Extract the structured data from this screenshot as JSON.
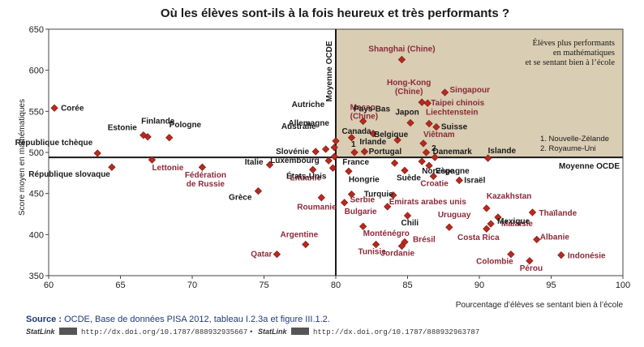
{
  "chart_data": {
    "type": "scatter",
    "title": "Où les élèves sont-ils à la fois heureux et très performants ?",
    "xlabel": "Pourcentage d’élèves se sentant bien à l’école",
    "ylabel": "Score moyen en mathématiques",
    "xlim": [
      60,
      100
    ],
    "ylim": [
      350,
      650
    ],
    "xticks": [
      60,
      65,
      70,
      75,
      80,
      85,
      90,
      95,
      100
    ],
    "yticks": [
      350,
      400,
      450,
      500,
      550,
      600,
      650
    ],
    "oecd_x": 80,
    "oecd_y": 494,
    "oecd_x_label": "Moyenne OCDE",
    "oecd_y_label": "Moyenne OCDE",
    "quadrant_note": [
      "Élèves plus performants",
      "en mathématiques",
      "et se sentant bien à l’école"
    ],
    "footnotes": [
      "1. Nouvelle-Zélande",
      "2. Royaume-Uni"
    ],
    "points": [
      {
        "name": "Corée",
        "x": 60.4,
        "y": 554,
        "oecd": true
      },
      {
        "name": "République tchèque",
        "x": 63.4,
        "y": 499,
        "oecd": true
      },
      {
        "name": "République slovaque",
        "x": 64.4,
        "y": 482,
        "oecd": true
      },
      {
        "name": "Estonie",
        "x": 66.6,
        "y": 521,
        "oecd": true
      },
      {
        "name": "Finlande",
        "x": 66.9,
        "y": 519,
        "oecd": true
      },
      {
        "name": "Pologne",
        "x": 68.4,
        "y": 518,
        "oecd": true
      },
      {
        "name": "Lettonie",
        "x": 67.2,
        "y": 491,
        "oecd": false
      },
      {
        "name": "Fédération de Russie",
        "x": 70.7,
        "y": 482,
        "oecd": false
      },
      {
        "name": "Grèce",
        "x": 74.6,
        "y": 453,
        "oecd": true
      },
      {
        "name": "Italie",
        "x": 75.4,
        "y": 485,
        "oecd": true
      },
      {
        "name": "Argentine",
        "x": 77.9,
        "y": 388,
        "oecd": false
      },
      {
        "name": "Qatar",
        "x": 75.9,
        "y": 376,
        "oecd": false
      },
      {
        "name": "Roumanie",
        "x": 79.0,
        "y": 445,
        "oecd": false
      },
      {
        "name": "Lituanie",
        "x": 78.4,
        "y": 479,
        "oecd": false
      },
      {
        "name": "Luxembourg",
        "x": 79.5,
        "y": 490,
        "oecd": true
      },
      {
        "name": "États-Unis",
        "x": 79.8,
        "y": 481,
        "oecd": true
      },
      {
        "name": "Slovénie",
        "x": 78.6,
        "y": 501,
        "oecd": true
      },
      {
        "name": "Australie",
        "x": 79.3,
        "y": 504,
        "oecd": true
      },
      {
        "name": "Autriche",
        "x": 79.9,
        "y": 506,
        "oecd": true
      },
      {
        "name": "Allemagne",
        "x": 80.0,
        "y": 514,
        "oecd": true
      },
      {
        "name": "France",
        "x": 79.9,
        "y": 495,
        "oecd": true
      },
      {
        "name": "Hongrie",
        "x": 80.9,
        "y": 477,
        "oecd": true
      },
      {
        "name": "Canada",
        "x": 81.1,
        "y": 518,
        "oecd": true
      },
      {
        "name": "1",
        "x": 81.3,
        "y": 500,
        "oecd": true
      },
      {
        "name": "Irlande",
        "x": 82.0,
        "y": 501,
        "oecd": true
      },
      {
        "name": "Macao (Chine)",
        "x": 81.9,
        "y": 538,
        "oecd": false
      },
      {
        "name": "Pays-Bas",
        "x": 82.6,
        "y": 523,
        "oecd": true
      },
      {
        "name": "Serbie",
        "x": 81.1,
        "y": 449,
        "oecd": false
      },
      {
        "name": "Bulgarie",
        "x": 80.6,
        "y": 439,
        "oecd": false
      },
      {
        "name": "Monténégro",
        "x": 81.9,
        "y": 410,
        "oecd": false
      },
      {
        "name": "Tunisie",
        "x": 82.8,
        "y": 388,
        "oecd": false
      },
      {
        "name": "Turquie",
        "x": 84.0,
        "y": 448,
        "oecd": true
      },
      {
        "name": "Émirats arabes unis",
        "x": 83.6,
        "y": 434,
        "oecd": false
      },
      {
        "name": "Chili",
        "x": 85.0,
        "y": 423,
        "oecd": true
      },
      {
        "name": "Jordanie",
        "x": 84.6,
        "y": 386,
        "oecd": false
      },
      {
        "name": "Brésil",
        "x": 84.8,
        "y": 391,
        "oecd": false
      },
      {
        "name": "Portugal",
        "x": 84.1,
        "y": 487,
        "oecd": true
      },
      {
        "name": "Suède",
        "x": 84.8,
        "y": 478,
        "oecd": true
      },
      {
        "name": "Belgique",
        "x": 84.3,
        "y": 515,
        "oecd": true
      },
      {
        "name": "Shanghai (Chine)",
        "x": 84.6,
        "y": 613,
        "oecd": false
      },
      {
        "name": "Hong-Kong (Chine)",
        "x": 86.0,
        "y": 561,
        "oecd": false
      },
      {
        "name": "Taipei chinois",
        "x": 86.4,
        "y": 560,
        "oecd": false
      },
      {
        "name": "Singapour",
        "x": 87.6,
        "y": 573,
        "oecd": false
      },
      {
        "name": "Japon",
        "x": 85.2,
        "y": 536,
        "oecd": true
      },
      {
        "name": "Liechtenstein",
        "x": 86.5,
        "y": 535,
        "oecd": false
      },
      {
        "name": "Suisse",
        "x": 87.0,
        "y": 531,
        "oecd": true
      },
      {
        "name": "Viêtnam",
        "x": 86.1,
        "y": 511,
        "oecd": false
      },
      {
        "name": "Danemark",
        "x": 86.3,
        "y": 500,
        "oecd": true
      },
      {
        "name": "2",
        "x": 86.9,
        "y": 494,
        "oecd": true
      },
      {
        "name": "Espagne",
        "x": 86.5,
        "y": 484,
        "oecd": true
      },
      {
        "name": "Croatie",
        "x": 86.8,
        "y": 471,
        "oecd": false
      },
      {
        "name": "Israël",
        "x": 88.6,
        "y": 466,
        "oecd": true
      },
      {
        "name": "Uruguay",
        "x": 87.9,
        "y": 409,
        "oecd": false
      },
      {
        "name": "Islande",
        "x": 90.6,
        "y": 493,
        "oecd": true
      },
      {
        "name": "Norvège",
        "x": 86.0,
        "y": 489,
        "oecd": true
      },
      {
        "name": "Kazakhstan",
        "x": 90.5,
        "y": 432,
        "oecd": false
      },
      {
        "name": "Malaisie",
        "x": 91.3,
        "y": 421,
        "oecd": false
      },
      {
        "name": "Mexique",
        "x": 90.8,
        "y": 413,
        "oecd": true
      },
      {
        "name": "Costa Rica",
        "x": 90.5,
        "y": 407,
        "oecd": false
      },
      {
        "name": "Thaïlande",
        "x": 93.7,
        "y": 427,
        "oecd": false
      },
      {
        "name": "Albanie",
        "x": 94.0,
        "y": 394,
        "oecd": false
      },
      {
        "name": "Colombie",
        "x": 92.2,
        "y": 376,
        "oecd": false
      },
      {
        "name": "Pérou",
        "x": 93.5,
        "y": 368,
        "oecd": false
      },
      {
        "name": "Indonésie",
        "x": 95.7,
        "y": 375,
        "oecd": false
      }
    ]
  },
  "source": {
    "label": "Source :",
    "text": "OCDE, Base de données PISA 2012, tableau I.2.3a et figure III.1.2.",
    "statlink_label": "StatLink",
    "url1": "http://dx.doi.org/10.1787/888932935667",
    "separator": "•",
    "url2": "http://dx.doi.org/10.1787/888932963787"
  },
  "colors": {
    "marker": "#b82a1e",
    "quadrant": "#d9cdb3",
    "label_red": "#8b2a3a",
    "label_dark": "#1a1a1a",
    "oecd_line": "#1a1a1a"
  }
}
